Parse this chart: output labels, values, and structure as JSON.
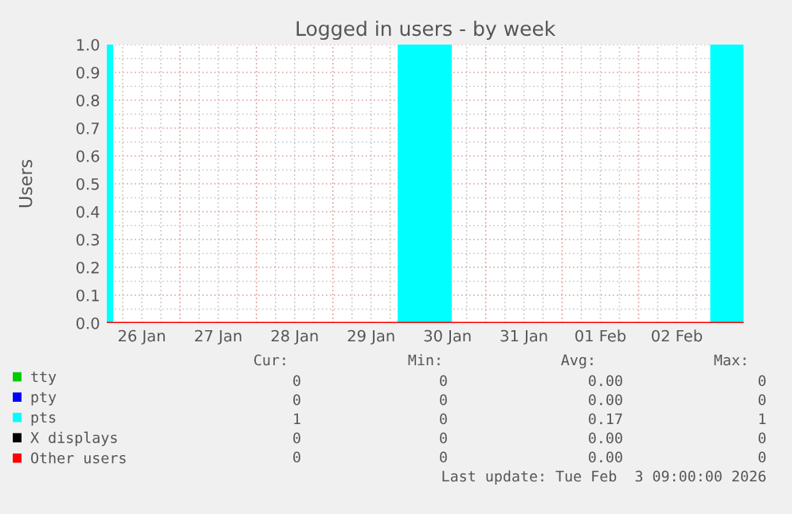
{
  "chart_data": {
    "type": "line",
    "title": "Logged in users - by week",
    "ylabel": "Users",
    "xlim": [
      "2026-01-26T01:00",
      "2026-02-03T09:00"
    ],
    "xticks": [
      {
        "value": "2026-01-26T12:00",
        "label": "26 Jan"
      },
      {
        "value": "2026-01-27T12:00",
        "label": "27 Jan"
      },
      {
        "value": "2026-01-28T12:00",
        "label": "28 Jan"
      },
      {
        "value": "2026-01-29T12:00",
        "label": "29 Jan"
      },
      {
        "value": "2026-01-30T12:00",
        "label": "30 Jan"
      },
      {
        "value": "2026-01-31T12:00",
        "label": "31 Jan"
      },
      {
        "value": "2026-02-01T12:00",
        "label": "01 Feb"
      },
      {
        "value": "2026-02-02T12:00",
        "label": "02 Feb"
      }
    ],
    "ylim": [
      0,
      1
    ],
    "yticks": [
      {
        "value": 0,
        "label": "0.0"
      },
      {
        "value": 0.1,
        "label": "0.1"
      },
      {
        "value": 0.2,
        "label": "0.2"
      },
      {
        "value": 0.3,
        "label": "0.3"
      },
      {
        "value": 0.4,
        "label": "0.4"
      },
      {
        "value": 0.5,
        "label": "0.5"
      },
      {
        "value": 0.6,
        "label": "0.6"
      },
      {
        "value": 0.7,
        "label": "0.7"
      },
      {
        "value": 0.8,
        "label": "0.8"
      },
      {
        "value": 0.9,
        "label": "0.9"
      },
      {
        "value": 1,
        "label": "1.0"
      }
    ],
    "grid": true,
    "legend": "bottom",
    "series": [
      {
        "name": "tty",
        "color": "#00cc00"
      },
      {
        "name": "pty",
        "color": "#0000ff"
      },
      {
        "name": "pts",
        "color": "#00ffff",
        "type": "area",
        "x": [
          "2026-01-26T01:00",
          "2026-01-26T03:00",
          "2026-01-26T03:00",
          "2026-01-29T20:20",
          "2026-01-29T20:20",
          "2026-01-30T13:20",
          "2026-01-30T13:20",
          "2026-02-02T22:30",
          "2026-02-02T22:30",
          "2026-02-03T09:00"
        ],
        "values": [
          1,
          1,
          0,
          0,
          1,
          1,
          0,
          0,
          1,
          1
        ]
      },
      {
        "name": "X displays",
        "color": "#000000"
      },
      {
        "name": "Other users",
        "color": "#ff0000",
        "x": [
          "2026-01-26T01:00",
          "2026-02-03T09:00"
        ],
        "values": [
          0,
          0
        ]
      }
    ],
    "annotations": [
      "Cur:",
      "Min:",
      "Avg:",
      "Max:",
      "0",
      "0",
      "0.00",
      "0",
      "0",
      "0",
      "0.00",
      "0",
      "1",
      "0",
      "0.17",
      "1",
      "0",
      "0",
      "0.00",
      "0",
      "0",
      "0",
      "0.00",
      "0",
      "Last update: Tue Feb  3 09:00:00 2026"
    ]
  }
}
